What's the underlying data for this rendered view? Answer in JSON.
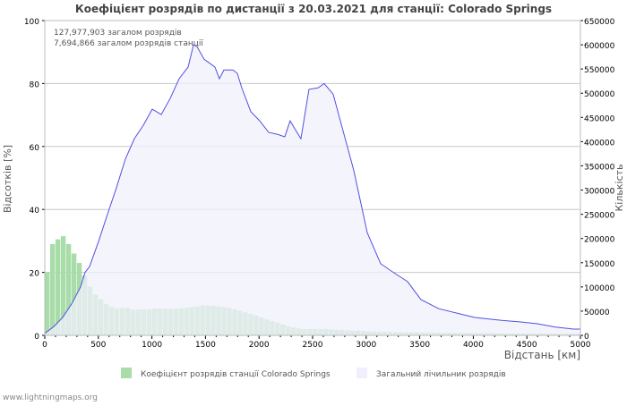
{
  "chart_data": {
    "type": "bar+area",
    "title": "Коефіцієнт розрядів по дистанції з 20.03.2021 для станції: Colorado Springs",
    "xlabel": "Відстань   [км]",
    "ylabel_left": "Відсотків   [%]",
    "ylabel_right": "Кількість",
    "xlim": [
      0,
      5000
    ],
    "ylim_left": [
      0,
      100
    ],
    "ylim_right": [
      0,
      650000
    ],
    "x_ticks": [
      0,
      500,
      1000,
      1500,
      2000,
      2500,
      3000,
      3500,
      4000,
      4500,
      5000
    ],
    "y_ticks_left": [
      0,
      20,
      40,
      60,
      80,
      100
    ],
    "y_ticks_right": [
      0,
      50000,
      100000,
      150000,
      200000,
      250000,
      300000,
      350000,
      400000,
      450000,
      500000,
      550000,
      600000,
      650000
    ],
    "grid": true,
    "annotations": [
      "127,977,903 загалом розрядів",
      "7,694,866 загалом розрядів станції"
    ],
    "legend": [
      "Коефіцієнт розрядів станції Colorado Springs",
      "Загальний лічильник розрядів"
    ],
    "legend_placement": "bottom",
    "bin_width_km": 50,
    "station_ratio_percent": [
      20,
      29,
      30.5,
      31.5,
      29,
      26,
      23,
      19,
      15.5,
      13,
      11.5,
      10,
      9,
      8.5,
      8.7,
      8.7,
      8.2,
      8.2,
      8.2,
      8.2,
      8.5,
      8.5,
      8.5,
      8.4,
      8.5,
      8.6,
      8.8,
      9,
      9.2,
      9.5,
      9.5,
      9.4,
      9.2,
      9,
      8.7,
      8.3,
      7.8,
      7.3,
      6.8,
      6.3,
      5.7,
      5.1,
      4.5,
      4,
      3.4,
      2.9,
      2.5,
      2.2,
      2,
      2,
      2,
      2,
      2,
      1.9,
      1.8,
      1.7,
      1.6,
      1.5,
      1.5,
      1.4,
      1.3,
      1.2,
      1.2,
      1.1,
      1.1,
      1,
      1,
      1,
      1,
      1,
      0.9,
      0.9,
      0.9,
      0.9,
      0.8,
      0.8,
      0.8,
      0.8,
      0.8,
      0.7,
      0.7,
      0.7,
      0.7,
      0.7,
      0.7,
      0.6,
      0.6,
      0.6,
      0.6,
      0.6,
      0.6,
      0.5,
      0.5,
      0.5,
      0.5,
      0.5,
      0.5,
      0.5,
      0.5,
      0.5
    ],
    "total_count": {
      "km": [
        0,
        84,
        167,
        251,
        334,
        376,
        418,
        502,
        585,
        669,
        752,
        836,
        920,
        1003,
        1087,
        1170,
        1254,
        1338,
        1388,
        1421,
        1488,
        1588,
        1630,
        1672,
        1756,
        1797,
        1839,
        1923,
        2006,
        2090,
        2174,
        2240,
        2290,
        2341,
        2391,
        2466,
        2550,
        2608,
        2692,
        2759,
        2884,
        3010,
        3135,
        3260,
        3386,
        3511,
        3678,
        3846,
        4013,
        4264,
        4431,
        4598,
        4766,
        4933,
        5000
      ],
      "count": [
        4000,
        18000,
        37000,
        65000,
        100000,
        130000,
        142000,
        194000,
        250000,
        305000,
        364000,
        406000,
        434000,
        467000,
        456000,
        489000,
        530000,
        554000,
        600000,
        596000,
        570000,
        554000,
        530000,
        548000,
        548000,
        541000,
        511000,
        462000,
        443000,
        419000,
        415000,
        410000,
        443000,
        424000,
        406000,
        508000,
        511000,
        520000,
        498000,
        443000,
        341000,
        212000,
        148000,
        129000,
        111000,
        74000,
        55000,
        46000,
        37000,
        31000,
        28000,
        24000,
        17000,
        13000,
        13000
      ]
    },
    "colors": {
      "bars": "#a8dca8",
      "area_fill": "#f0f0fc",
      "line": "#5050e0",
      "grid": "#c8c8c8"
    }
  },
  "footer": "www.lightningmaps.org"
}
